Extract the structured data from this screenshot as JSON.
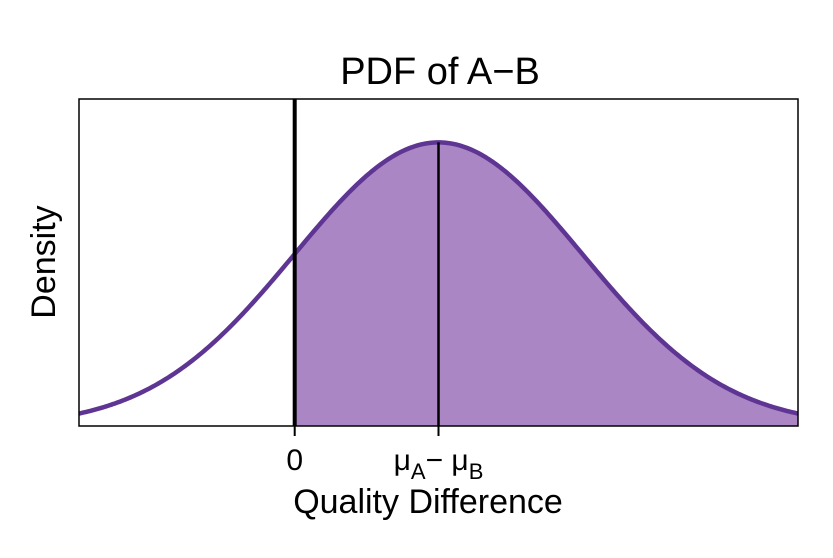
{
  "chart_data": {
    "type": "area",
    "title": "PDF of A−B",
    "xlabel": "Quality Difference",
    "ylabel": "Density",
    "distribution": "normal",
    "mean": 1,
    "sd": 1,
    "xlim": [
      -1.5,
      3.5
    ],
    "ylim": [
      0,
      0.46
    ],
    "shaded_from": 0,
    "x_ticks": [
      {
        "value": 0,
        "label": "0"
      },
      {
        "value": 1,
        "label_main": "μ",
        "label_sub1": "A",
        "label_mid": "− μ",
        "label_sub2": "B"
      }
    ],
    "vertical_lines": [
      {
        "x": 0,
        "style": "thick"
      },
      {
        "x": 1,
        "style": "thin"
      }
    ],
    "colors": {
      "curve": "#5f3593",
      "fill": "#ab86c5",
      "axis": "#000000"
    },
    "grid": false,
    "legend": "none"
  }
}
